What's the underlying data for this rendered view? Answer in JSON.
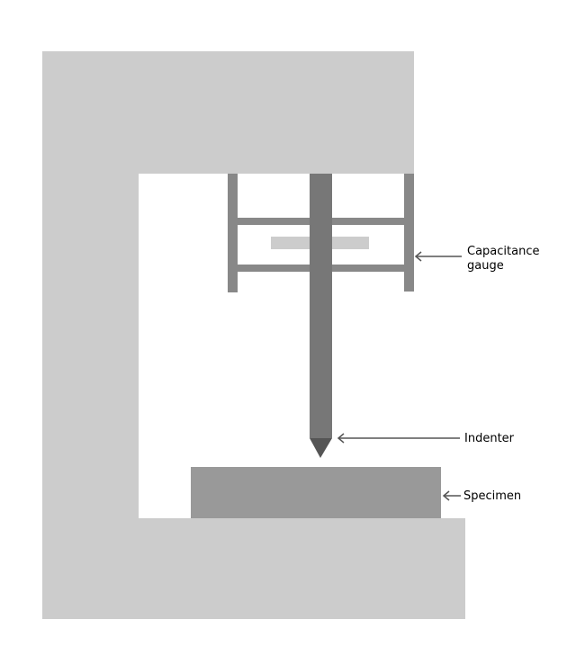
{
  "labels": {
    "capacitance_line1": "Capacitance",
    "capacitance_line2": "gauge",
    "indenter": "Indenter",
    "specimen": "Specimen"
  },
  "colors": {
    "frame": "#cccccc",
    "indenter": "#777777",
    "gauge_frame": "#888888",
    "gauge_plate": "#cccccc",
    "specimen": "#999999",
    "arrow": "#555555"
  }
}
